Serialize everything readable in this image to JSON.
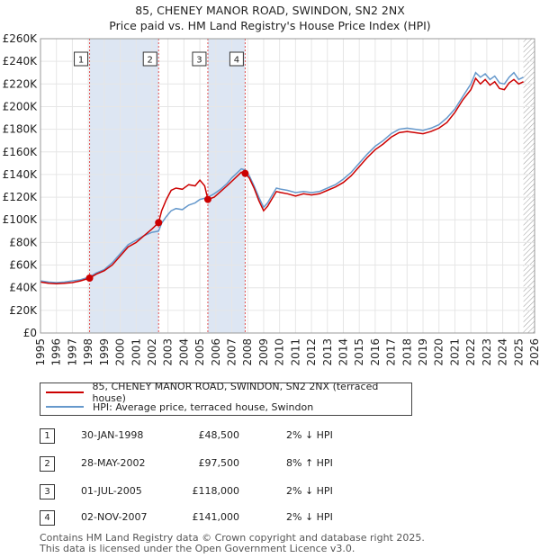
{
  "title_line1": "85, CHENEY MANOR ROAD, SWINDON, SN2 2NX",
  "title_line2": "Price paid vs. HM Land Registry's House Price Index (HPI)",
  "colors": {
    "property": "#cc0000",
    "hpi": "#6699cc",
    "shade": "#dde6f3",
    "vline": "#e05050"
  },
  "chart_data": {
    "type": "line",
    "title": "Price paid vs. HM Land Registry's House Price Index (HPI)",
    "xlabel": "",
    "ylabel": "",
    "xlim": [
      1995,
      2026
    ],
    "ylim": [
      0,
      260000
    ],
    "x_ticks": [
      "1995",
      "1996",
      "1997",
      "1998",
      "1999",
      "2000",
      "2001",
      "2002",
      "2003",
      "2004",
      "2005",
      "2006",
      "2007",
      "2008",
      "2009",
      "2010",
      "2011",
      "2012",
      "2013",
      "2014",
      "2015",
      "2016",
      "2017",
      "2018",
      "2019",
      "2020",
      "2021",
      "2022",
      "2023",
      "2024",
      "2025",
      "2026"
    ],
    "y_ticks": [
      {
        "value": 0,
        "label": "£0"
      },
      {
        "value": 20000,
        "label": "£20K"
      },
      {
        "value": 40000,
        "label": "£40K"
      },
      {
        "value": 60000,
        "label": "£60K"
      },
      {
        "value": 80000,
        "label": "£80K"
      },
      {
        "value": 100000,
        "label": "£100K"
      },
      {
        "value": 120000,
        "label": "£120K"
      },
      {
        "value": 140000,
        "label": "£140K"
      },
      {
        "value": 160000,
        "label": "£160K"
      },
      {
        "value": 180000,
        "label": "£180K"
      },
      {
        "value": 200000,
        "label": "£200K"
      },
      {
        "value": 220000,
        "label": "£220K"
      },
      {
        "value": 240000,
        "label": "£240K"
      },
      {
        "value": 260000,
        "label": "£260K"
      }
    ],
    "shaded_regions": [
      [
        1998.08,
        2002.41
      ],
      [
        2005.5,
        2007.84
      ]
    ],
    "future_hatch_from": 2025.3,
    "series": [
      {
        "name": "85, CHENEY MANOR ROAD, SWINDON, SN2 2NX (terraced house)",
        "color": "#cc0000",
        "x": [
          1995.0,
          1995.5,
          1996.0,
          1996.5,
          1997.0,
          1997.5,
          1998.08,
          1998.5,
          1999.0,
          1999.5,
          2000.0,
          2000.5,
          2001.0,
          2001.5,
          2002.0,
          2002.41,
          2002.6,
          2002.9,
          2003.2,
          2003.5,
          2003.9,
          2004.3,
          2004.7,
          2005.0,
          2005.3,
          2005.5,
          2005.9,
          2006.3,
          2006.7,
          2007.0,
          2007.3,
          2007.6,
          2007.84,
          2008.1,
          2008.4,
          2008.7,
          2009.0,
          2009.25,
          2009.5,
          2009.8,
          2010.1,
          2010.5,
          2011.0,
          2011.5,
          2012.0,
          2012.5,
          2013.0,
          2013.5,
          2014.0,
          2014.5,
          2015.0,
          2015.5,
          2016.0,
          2016.5,
          2017.0,
          2017.5,
          2018.0,
          2018.5,
          2019.0,
          2019.5,
          2020.0,
          2020.5,
          2021.0,
          2021.5,
          2022.0,
          2022.3,
          2022.6,
          2022.9,
          2023.2,
          2023.5,
          2023.8,
          2024.1,
          2024.4,
          2024.7,
          2025.0,
          2025.3
        ],
        "y": [
          45000,
          44000,
          43500,
          44000,
          44500,
          46000,
          48500,
          52000,
          55000,
          60000,
          68000,
          76000,
          80000,
          86000,
          92000,
          97500,
          108000,
          118000,
          126000,
          128000,
          127000,
          131000,
          130000,
          135000,
          130000,
          118000,
          120000,
          125000,
          130000,
          134000,
          138000,
          142000,
          141000,
          137000,
          128000,
          117000,
          108000,
          112000,
          118000,
          125000,
          124000,
          123000,
          121000,
          123000,
          122000,
          123000,
          126000,
          129000,
          133000,
          139000,
          147000,
          155000,
          162000,
          167000,
          173000,
          177000,
          178000,
          177000,
          176000,
          178000,
          181000,
          186000,
          195000,
          206000,
          215000,
          225000,
          220000,
          224000,
          219000,
          222000,
          216000,
          215000,
          221000,
          224000,
          220000,
          222000
        ]
      },
      {
        "name": "HPI: Average price, terraced house, Swindon",
        "color": "#6699cc",
        "x": [
          1995.0,
          1995.5,
          1996.0,
          1996.5,
          1997.0,
          1997.5,
          1998.08,
          1998.5,
          1999.0,
          1999.5,
          2000.0,
          2000.5,
          2001.0,
          2001.5,
          2002.0,
          2002.41,
          2002.6,
          2002.9,
          2003.2,
          2003.5,
          2003.9,
          2004.3,
          2004.7,
          2005.0,
          2005.3,
          2005.5,
          2005.9,
          2006.3,
          2006.7,
          2007.0,
          2007.3,
          2007.6,
          2007.84,
          2008.1,
          2008.4,
          2008.7,
          2009.0,
          2009.25,
          2009.5,
          2009.8,
          2010.1,
          2010.5,
          2011.0,
          2011.5,
          2012.0,
          2012.5,
          2013.0,
          2013.5,
          2014.0,
          2014.5,
          2015.0,
          2015.5,
          2016.0,
          2016.5,
          2017.0,
          2017.5,
          2018.0,
          2018.5,
          2019.0,
          2019.5,
          2020.0,
          2020.5,
          2021.0,
          2021.5,
          2022.0,
          2022.3,
          2022.6,
          2022.9,
          2023.2,
          2023.5,
          2023.8,
          2024.1,
          2024.4,
          2024.7,
          2025.0,
          2025.3
        ],
        "y": [
          46000,
          45000,
          44500,
          45000,
          46000,
          47000,
          49500,
          53000,
          56000,
          62000,
          70000,
          78000,
          82000,
          86000,
          89000,
          90000,
          97000,
          103000,
          108000,
          110000,
          109000,
          113000,
          115000,
          118000,
          119000,
          120000,
          123000,
          127000,
          132000,
          137000,
          141000,
          145000,
          144000,
          139000,
          130000,
          120000,
          111000,
          115000,
          121000,
          128000,
          127000,
          126000,
          124000,
          125000,
          124000,
          125000,
          128000,
          131000,
          136000,
          142000,
          150000,
          158000,
          165000,
          170000,
          176000,
          180000,
          181000,
          180000,
          179000,
          181000,
          184000,
          190000,
          198000,
          209000,
          220000,
          230000,
          226000,
          229000,
          224000,
          227000,
          221000,
          220000,
          226000,
          230000,
          224000,
          226000
        ]
      }
    ],
    "sale_markers": [
      {
        "label": "1",
        "x": 1998.08,
        "y": 48500
      },
      {
        "label": "2",
        "x": 2002.41,
        "y": 97500
      },
      {
        "label": "3",
        "x": 2005.5,
        "y": 118000
      },
      {
        "label": "4",
        "x": 2007.84,
        "y": 141000
      }
    ]
  },
  "legend": {
    "property": "85, CHENEY MANOR ROAD, SWINDON, SN2 2NX (terraced house)",
    "hpi": "HPI: Average price, terraced house, Swindon"
  },
  "transactions": [
    {
      "num": "1",
      "date": "30-JAN-1998",
      "price": "£48,500",
      "hpi": "2% ↓ HPI"
    },
    {
      "num": "2",
      "date": "28-MAY-2002",
      "price": "£97,500",
      "hpi": "8% ↑ HPI"
    },
    {
      "num": "3",
      "date": "01-JUL-2005",
      "price": "£118,000",
      "hpi": "2% ↓ HPI"
    },
    {
      "num": "4",
      "date": "02-NOV-2007",
      "price": "£141,000",
      "hpi": "2% ↓ HPI"
    }
  ],
  "footer": {
    "line1": "Contains HM Land Registry data © Crown copyright and database right 2025.",
    "line2": "This data is licensed under the Open Government Licence v3.0."
  }
}
